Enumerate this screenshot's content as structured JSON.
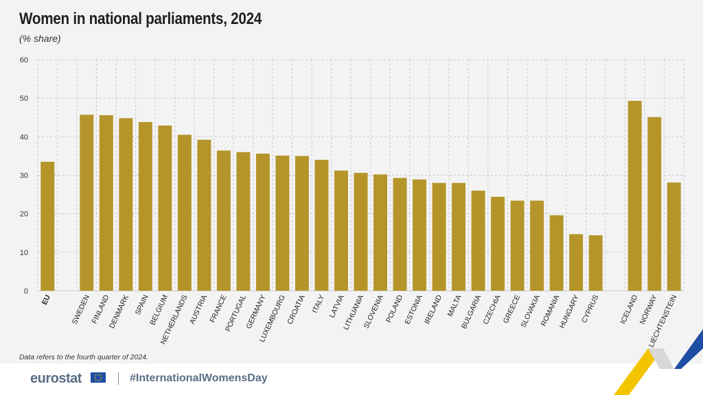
{
  "title": "Women in national parliaments, 2024",
  "subtitle": "(% share)",
  "note": "Data refers to the fourth quarter of 2024.",
  "footer": {
    "logo": "eurostat",
    "hashtag": "#InternationalWomensDay"
  },
  "colors": {
    "bar": "#b5952a",
    "grid": "#c9c9c9",
    "accent_yellow": "#f2c500",
    "accent_blue": "#1d4ea3"
  },
  "chart_data": {
    "type": "bar",
    "ylim": [
      0,
      60
    ],
    "yticks": [
      0,
      10,
      20,
      30,
      40,
      50,
      60
    ],
    "grid": true,
    "categories": [
      "EU",
      "",
      "SWEDEN",
      "FINLAND",
      "DENMARK",
      "SPAIN",
      "BELGIUM",
      "NETHERLANDS",
      "AUSTRIA",
      "FRANCE",
      "PORTUGAL",
      "GERMANY",
      "LUXEMBOURG",
      "CROATIA",
      "ITALY",
      "LATVIA",
      "LITHUANIA",
      "SLOVENIA",
      "POLAND",
      "ESTONIA",
      "IRELAND",
      "MALTA",
      "BULGARIA",
      "CZECHIA",
      "GREECE",
      "SLOVAKIA",
      "ROMANIA",
      "HUNGARY",
      "CYPRUS",
      "",
      "ICELAND",
      "NORWAY",
      "LIECHTENSTEIN"
    ],
    "values": [
      33.5,
      null,
      45.7,
      45.6,
      44.8,
      43.8,
      42.9,
      40.5,
      39.2,
      36.4,
      36.0,
      35.6,
      35.1,
      35.0,
      34.0,
      31.2,
      30.6,
      30.2,
      29.3,
      28.9,
      28.0,
      28.0,
      26.0,
      24.4,
      23.4,
      23.4,
      19.6,
      14.7,
      14.4,
      null,
      49.3,
      45.1,
      28.1
    ],
    "highlight": [
      "EU"
    ]
  }
}
